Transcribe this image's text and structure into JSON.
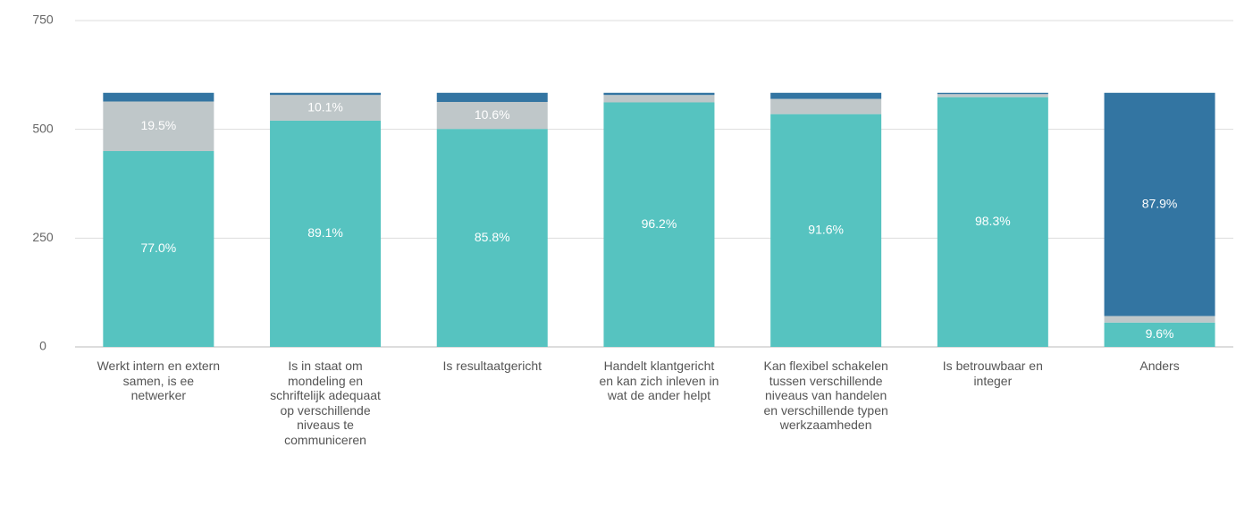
{
  "chart_data": {
    "type": "stacked-bar",
    "categories": [
      "Werkt intern en extern samen, is ee netwerker",
      "Is in staat om mondeling en schriftelijk adequaat op verschillende niveaus te communiceren",
      "Is resultaatgericht",
      "Handelt klantgericht en kan zich inleven in wat de ander helpt",
      "Kan flexibel schakelen tussen verschillende niveaus van handelen en verschillende typen werkzaamheden",
      "Is betrouwbaar en integer",
      "Anders"
    ],
    "series": [
      {
        "color": "#56c3c0",
        "values": [
          450,
          520,
          501,
          562,
          535,
          574,
          56
        ],
        "value_labels": [
          "77.0%",
          "89.1%",
          "85.8%",
          "96.2%",
          "91.6%",
          "98.3%",
          "9.6%"
        ]
      },
      {
        "color": "#bfc7c9",
        "values": [
          114,
          59,
          62,
          17,
          35,
          7,
          15
        ],
        "value_labels": [
          "19.5%",
          "10.1%",
          "10.6%",
          null,
          null,
          null,
          null
        ]
      },
      {
        "color": "#3375a2",
        "values": [
          20,
          5,
          21,
          5,
          14,
          3,
          513
        ],
        "value_labels": [
          null,
          null,
          null,
          null,
          null,
          null,
          "87.9%"
        ]
      }
    ],
    "ylim": [
      0,
      750
    ],
    "yticks": [
      0,
      250,
      500,
      750
    ],
    "grid": true
  }
}
